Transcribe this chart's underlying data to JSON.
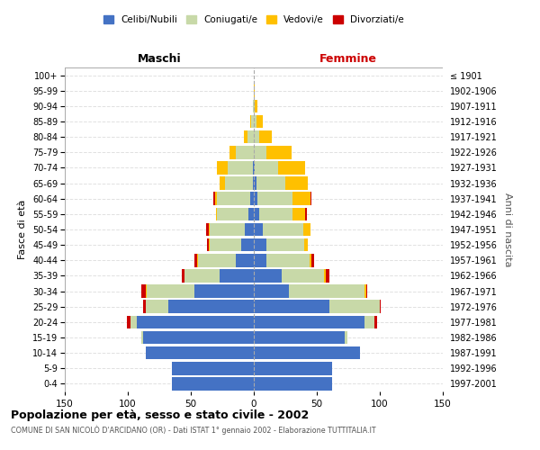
{
  "age_groups": [
    "0-4",
    "5-9",
    "10-14",
    "15-19",
    "20-24",
    "25-29",
    "30-34",
    "35-39",
    "40-44",
    "45-49",
    "50-54",
    "55-59",
    "60-64",
    "65-69",
    "70-74",
    "75-79",
    "80-84",
    "85-89",
    "90-94",
    "95-99",
    "100+"
  ],
  "birth_years": [
    "1997-2001",
    "1992-1996",
    "1987-1991",
    "1982-1986",
    "1977-1981",
    "1972-1976",
    "1967-1971",
    "1962-1966",
    "1957-1961",
    "1952-1956",
    "1947-1951",
    "1942-1946",
    "1937-1941",
    "1932-1936",
    "1927-1931",
    "1922-1926",
    "1917-1921",
    "1912-1916",
    "1907-1911",
    "1902-1906",
    "≤ 1901"
  ],
  "male": {
    "celibi": [
      65,
      65,
      86,
      88,
      93,
      68,
      47,
      27,
      14,
      10,
      7,
      4,
      3,
      1,
      1,
      0,
      0,
      0,
      0,
      0,
      0
    ],
    "coniugati": [
      0,
      0,
      0,
      1,
      5,
      18,
      38,
      28,
      30,
      25,
      28,
      25,
      26,
      22,
      20,
      14,
      5,
      2,
      1,
      0,
      0
    ],
    "vedovi": [
      0,
      0,
      0,
      0,
      0,
      0,
      1,
      0,
      1,
      1,
      1,
      1,
      2,
      4,
      8,
      5,
      3,
      1,
      0,
      0,
      0
    ],
    "divorziati": [
      0,
      0,
      0,
      0,
      3,
      2,
      3,
      2,
      2,
      1,
      2,
      0,
      1,
      0,
      0,
      0,
      0,
      0,
      0,
      0,
      0
    ]
  },
  "female": {
    "nubili": [
      62,
      62,
      84,
      72,
      88,
      60,
      28,
      22,
      10,
      10,
      7,
      4,
      3,
      2,
      1,
      0,
      0,
      0,
      0,
      0,
      0
    ],
    "coniugate": [
      0,
      0,
      0,
      2,
      8,
      40,
      60,
      34,
      34,
      30,
      32,
      27,
      28,
      23,
      18,
      10,
      4,
      2,
      1,
      0,
      0
    ],
    "vedove": [
      0,
      0,
      0,
      0,
      0,
      0,
      1,
      1,
      2,
      3,
      6,
      10,
      14,
      18,
      22,
      20,
      10,
      5,
      2,
      1,
      0
    ],
    "divorziate": [
      0,
      0,
      0,
      0,
      2,
      1,
      1,
      3,
      2,
      0,
      0,
      1,
      1,
      0,
      0,
      0,
      0,
      0,
      0,
      0,
      0
    ]
  },
  "colors": {
    "celibi": "#4472c4",
    "coniugati": "#c8d9a8",
    "vedovi": "#ffc000",
    "divorziati": "#cc0000"
  },
  "xlim": 150,
  "title": "Popolazione per età, sesso e stato civile - 2002",
  "subtitle": "COMUNE DI SAN NICOLÒ D'ARCIDANO (OR) - Dati ISTAT 1° gennaio 2002 - Elaborazione TUTTITALIA.IT",
  "ylabel": "Fasce di età",
  "ylabel_right": "Anni di nascita",
  "legend_labels": [
    "Celibi/Nubili",
    "Coniugati/e",
    "Vedovi/e",
    "Divorziati/e"
  ],
  "background_color": "#ffffff",
  "maschi_label": "Maschi",
  "femmine_label": "Femmine"
}
